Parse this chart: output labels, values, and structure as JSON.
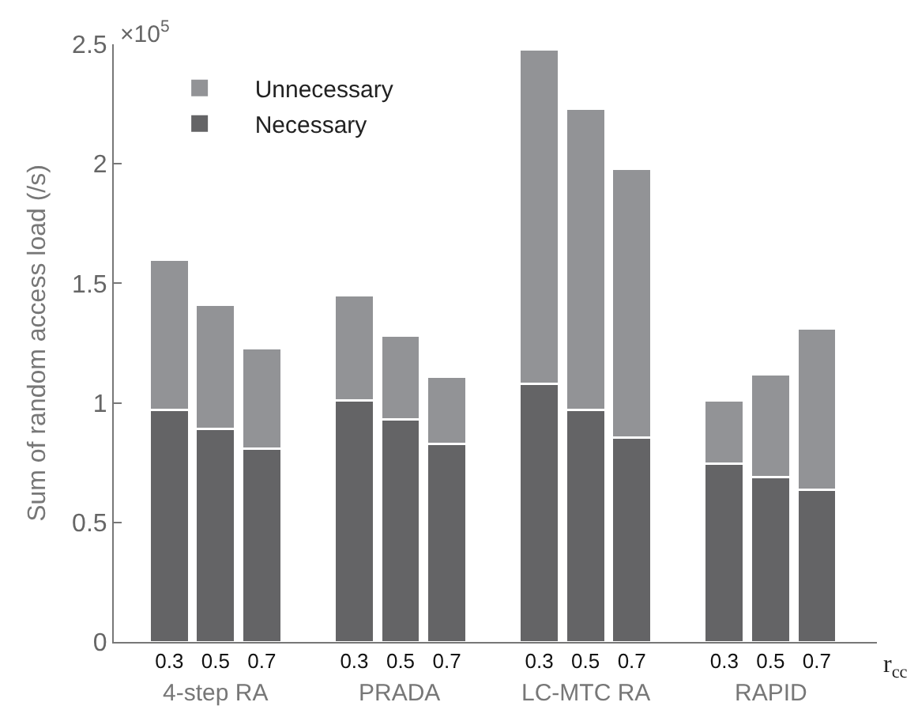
{
  "chart_data": {
    "type": "bar",
    "stacked": true,
    "categories": [
      "0.3",
      "0.5",
      "0.7",
      "0.3",
      "0.5",
      "0.7",
      "0.3",
      "0.5",
      "0.7",
      "0.3",
      "0.5",
      "0.7"
    ],
    "series": [
      {
        "name": "Necessary",
        "color": "#646466",
        "values": [
          0.97,
          0.89,
          0.81,
          1.01,
          0.93,
          0.83,
          1.08,
          0.97,
          0.855,
          0.745,
          0.69,
          0.635
        ]
      },
      {
        "name": "Unnecessary",
        "color": "#929396",
        "values": [
          0.63,
          0.52,
          0.42,
          0.44,
          0.35,
          0.28,
          1.4,
          1.26,
          1.125,
          0.265,
          0.43,
          0.675
        ]
      }
    ],
    "ylabel": "Sum of random access load (/s)",
    "xlabel": "r$_{cc}$",
    "ylim": [
      0,
      2.5
    ],
    "yticks": [
      0,
      0.5,
      1,
      1.5,
      2,
      2.5
    ],
    "annotations": [
      "×10$^{5}$",
      "4-step RA",
      "PRADA",
      "LC-MTC RA",
      "RAPID"
    ],
    "grid": false,
    "legend": "top left"
  }
}
